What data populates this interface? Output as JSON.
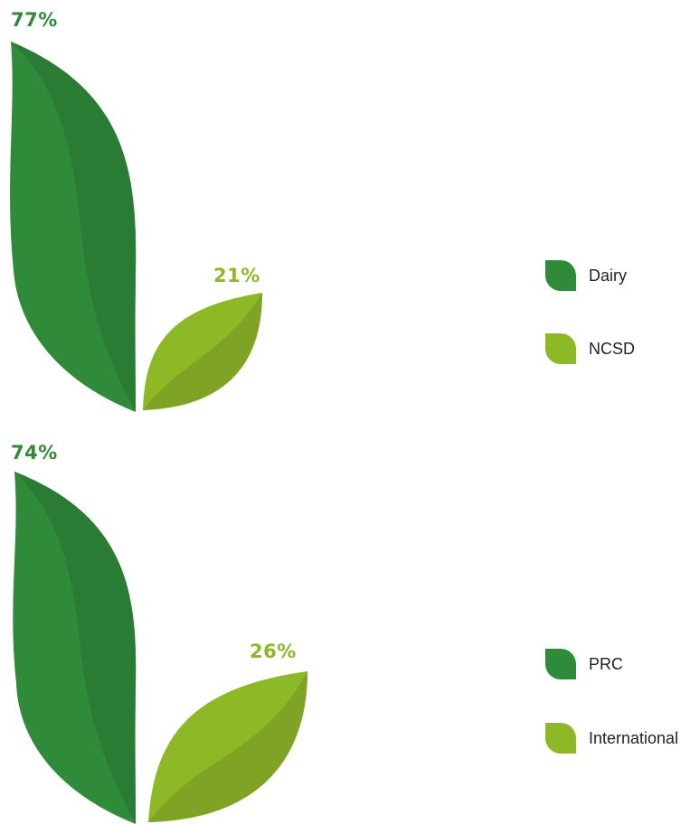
{
  "colors": {
    "primary": "#2f8a3a",
    "primary_dark": "#2a7b33",
    "secondary": "#8eb927",
    "secondary_dark": "#7fa324"
  },
  "chart_data": [
    {
      "type": "pie",
      "categories": [
        "Dairy",
        "NCSD"
      ],
      "values": [
        77,
        21
      ],
      "labels": [
        "77%",
        "21%"
      ],
      "legend": [
        "Dairy",
        "NCSD"
      ],
      "legend_position": "right"
    },
    {
      "type": "pie",
      "categories": [
        "PRC",
        "International"
      ],
      "values": [
        74,
        26
      ],
      "labels": [
        "74%",
        "26%"
      ],
      "legend": [
        "PRC",
        "International"
      ],
      "legend_position": "right"
    }
  ]
}
